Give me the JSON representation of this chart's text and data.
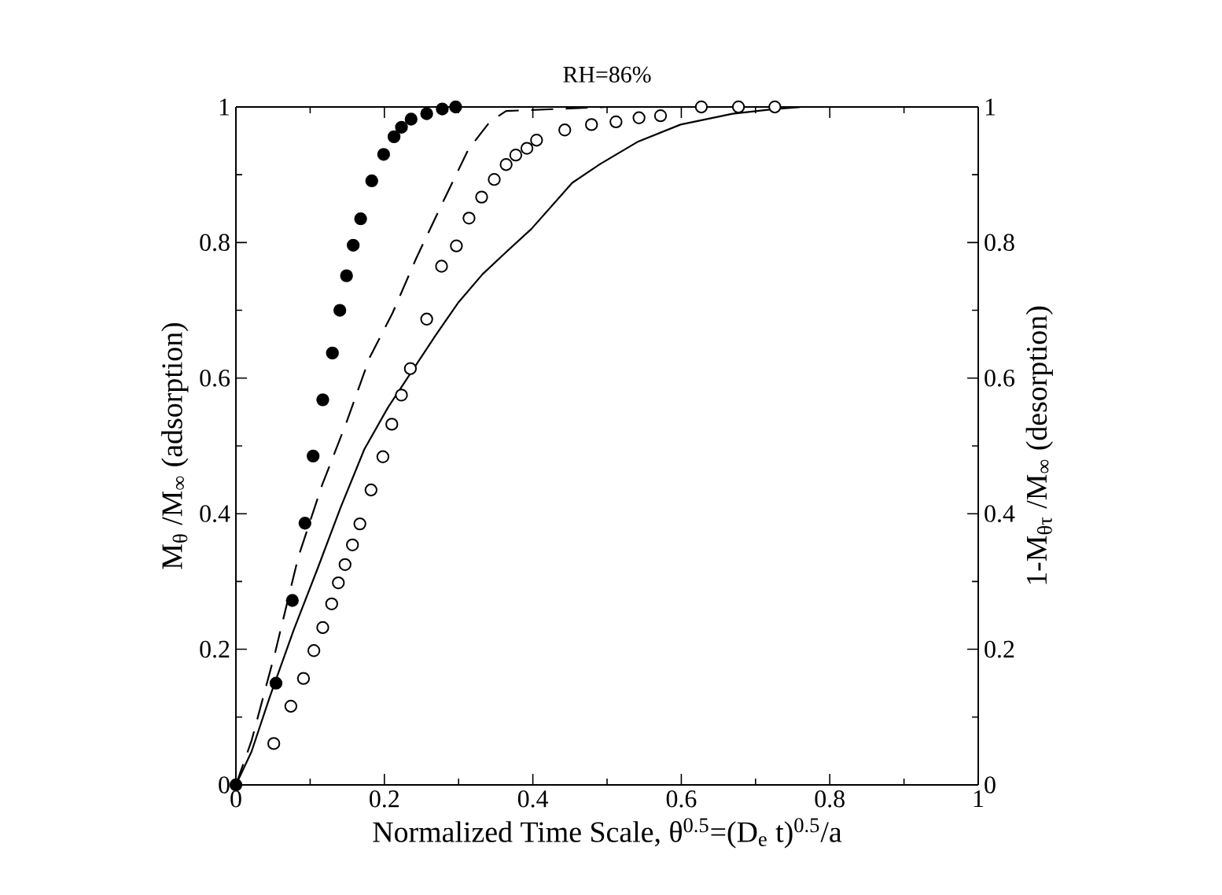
{
  "chart_data": {
    "type": "scatter",
    "title": "RH=86%",
    "xlabel": "Normalized Time Scale, θ$^{0.5}$=(D$_{e}$ t)$^{0.5}$/a",
    "ylabel": "M$_{θ}$ /M$_{∞}$ (adsorption)",
    "y2label": "1-M$_{θτ}$ /M$_{∞}$ (desorption)",
    "xlim": [
      0,
      1
    ],
    "ylim": [
      0,
      1
    ],
    "y2lim": [
      0,
      1
    ],
    "xticks": [
      0,
      0.2,
      0.4,
      0.6,
      0.8,
      1
    ],
    "yticks": [
      0,
      0.2,
      0.4,
      0.6,
      0.8,
      1
    ],
    "y2ticks": [
      0,
      0.2,
      0.4,
      0.6,
      0.8,
      1
    ],
    "grid": false,
    "marker": "circle",
    "series": [
      {
        "color": "#000000",
        "x": [
          0,
          0.054,
          0.076,
          0.093,
          0.104,
          0.117,
          0.13,
          0.14,
          0.149,
          0.158,
          0.168,
          0.183,
          0.199,
          0.213,
          0.223,
          0.236,
          0.257,
          0.278,
          0.296
        ],
        "values": [
          0,
          0.15,
          0.272,
          0.386,
          0.485,
          0.568,
          0.637,
          0.7,
          0.751,
          0.796,
          0.835,
          0.891,
          0.93,
          0.956,
          0.97,
          0.982,
          0.99,
          0.997,
          1.0
        ]
      },
      {
        "axis": "y2",
        "color": "#000000",
        "x": [
          0.051,
          0.074,
          0.091,
          0.105,
          0.117,
          0.129,
          0.138,
          0.147,
          0.157,
          0.167,
          0.182,
          0.198,
          0.21,
          0.223,
          0.235,
          0.257,
          0.277,
          0.297,
          0.314,
          0.331,
          0.348,
          0.364,
          0.377,
          0.392,
          0.405,
          0.443,
          0.479,
          0.512,
          0.543,
          0.572,
          0.627,
          0.677,
          0.726
        ],
        "values": [
          0.061,
          0.116,
          0.157,
          0.198,
          0.232,
          0.267,
          0.298,
          0.325,
          0.354,
          0.385,
          0.435,
          0.484,
          0.532,
          0.575,
          0.614,
          0.687,
          0.765,
          0.795,
          0.836,
          0.867,
          0.893,
          0.915,
          0.929,
          0.939,
          0.951,
          0.966,
          0.974,
          0.978,
          0.984,
          0.987,
          1.0,
          1.0,
          1.0
        ]
      },
      {
        "type": "line",
        "marker": "none",
        "line_style": "solid",
        "axis": "y2",
        "color": "#000000",
        "x": [
          0,
          0.021,
          0.046,
          0.078,
          0.11,
          0.141,
          0.173,
          0.205,
          0.237,
          0.269,
          0.3,
          0.332,
          0.364,
          0.398,
          0.453,
          0.491,
          0.542,
          0.599,
          0.669,
          0.726,
          0.762,
          0.8
        ],
        "values": [
          0,
          0.049,
          0.131,
          0.229,
          0.319,
          0.409,
          0.495,
          0.557,
          0.61,
          0.663,
          0.712,
          0.753,
          0.786,
          0.82,
          0.888,
          0.916,
          0.949,
          0.974,
          0.99,
          0.997,
          1.0,
          1.0
        ]
      },
      {
        "type": "line",
        "marker": "none",
        "line_style": "dashed",
        "color": "#000000",
        "x": [
          0,
          0.021,
          0.053,
          0.084,
          0.116,
          0.148,
          0.18,
          0.211,
          0.243,
          0.275,
          0.313,
          0.342,
          0.364,
          0.5
        ],
        "values": [
          0,
          0.065,
          0.196,
          0.336,
          0.442,
          0.532,
          0.63,
          0.696,
          0.777,
          0.851,
          0.937,
          0.978,
          0.994,
          1.0
        ]
      }
    ]
  }
}
